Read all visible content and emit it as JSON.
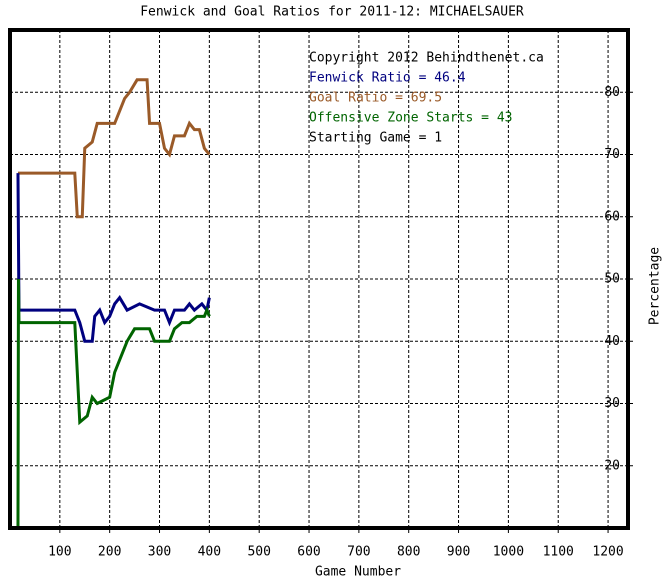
{
  "chart_data": {
    "type": "line",
    "title": "Fenwick and Goal Ratios for 2011-12: MICHAELSAUER",
    "x_label": "Game Number",
    "y_label": "Percentage",
    "annotations": [
      {
        "text": "Copyright 2012 Behindthenet.ca",
        "color": "#000000"
      },
      {
        "text": "Fenwick Ratio = 46.4",
        "color": "#00007f"
      },
      {
        "text": "Goal Ratio = 69.5",
        "color": "#9a5a28"
      },
      {
        "text": "Offensive Zone Starts = 43",
        "color": "#006400"
      },
      {
        "text": "Starting Game = 1",
        "color": "#000000"
      }
    ],
    "xlim": [
      0,
      1240
    ],
    "ylim": [
      10,
      90
    ],
    "xticks": [
      100,
      200,
      300,
      400,
      500,
      600,
      700,
      800,
      900,
      1000,
      1100,
      1200
    ],
    "yticks": [
      20,
      30,
      40,
      50,
      60,
      70,
      80
    ],
    "grid": true,
    "series": [
      {
        "color": "#9a5a28",
        "x": [
          16,
          130,
          135,
          145,
          150,
          165,
          175,
          210,
          220,
          230,
          240,
          255,
          275,
          280,
          300,
          310,
          320,
          330,
          350,
          360,
          370,
          380,
          390,
          400
        ],
        "values": [
          67,
          67,
          60,
          60,
          71,
          72,
          75,
          75,
          77,
          79,
          80,
          82,
          82,
          75,
          75,
          71,
          70,
          73,
          73,
          75,
          74,
          74,
          71,
          70
        ]
      },
      {
        "color": "#00007f",
        "x": [
          16,
          18,
          130,
          140,
          150,
          165,
          170,
          180,
          190,
          200,
          210,
          220,
          235,
          260,
          290,
          310,
          320,
          330,
          350,
          360,
          370,
          385,
          395,
          400
        ],
        "values": [
          67,
          45,
          45,
          43,
          40,
          40,
          44,
          45,
          43,
          44,
          46,
          47,
          45,
          46,
          45,
          45,
          43,
          45,
          45,
          46,
          45,
          46,
          45,
          47
        ]
      },
      {
        "color": "#006400",
        "x": [
          16,
          17,
          18,
          130,
          135,
          140,
          155,
          165,
          175,
          200,
          210,
          225,
          235,
          250,
          280,
          290,
          320,
          330,
          345,
          360,
          375,
          390,
          395,
          400
        ],
        "values": [
          10,
          50,
          43,
          43,
          35,
          27,
          28,
          31,
          30,
          31,
          35,
          38,
          40,
          42,
          42,
          40,
          40,
          42,
          43,
          43,
          44,
          44,
          45,
          44
        ]
      }
    ]
  }
}
